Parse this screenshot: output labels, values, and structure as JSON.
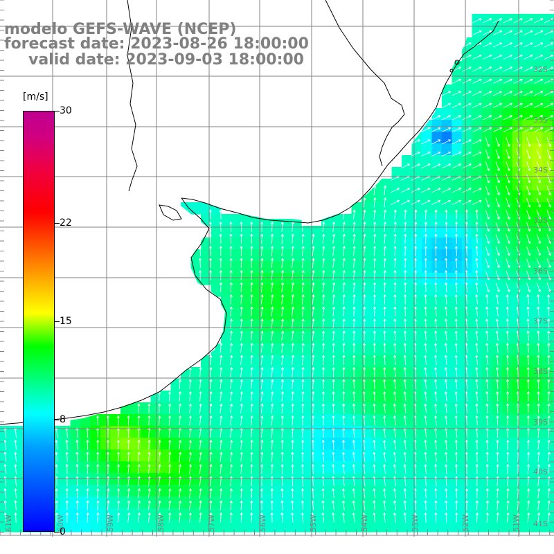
{
  "title": {
    "line1": "modelo GEFS-WAVE (NCEP)",
    "line2": "forecast date: 2023-08-26 18:00:00",
    "line3": "valid date: 2023-09-03 18:00:00"
  },
  "colorbar": {
    "unit": "[m/s]",
    "ticks": [
      {
        "value": 30,
        "label": "30"
      },
      {
        "value": 22,
        "label": "22"
      },
      {
        "value": 15,
        "label": "15"
      },
      {
        "value": 8,
        "label": "8"
      },
      {
        "value": 0,
        "label": "0"
      }
    ],
    "range": [
      0,
      30
    ]
  },
  "map": {
    "field": "wind speed",
    "lon_labels": [
      "61W",
      "60W",
      "59W",
      "58W",
      "57W",
      "56W",
      "55W",
      "54W",
      "53W",
      "52W",
      "51W"
    ],
    "lat_labels": [
      "32S",
      "33S",
      "34S",
      "35S",
      "36S",
      "37S",
      "38S",
      "39S",
      "40S",
      "41S"
    ],
    "land_color": "#ffffff",
    "grid_color": "#808080",
    "coast_color": "#000000",
    "arrow_color": "#ffffff"
  }
}
